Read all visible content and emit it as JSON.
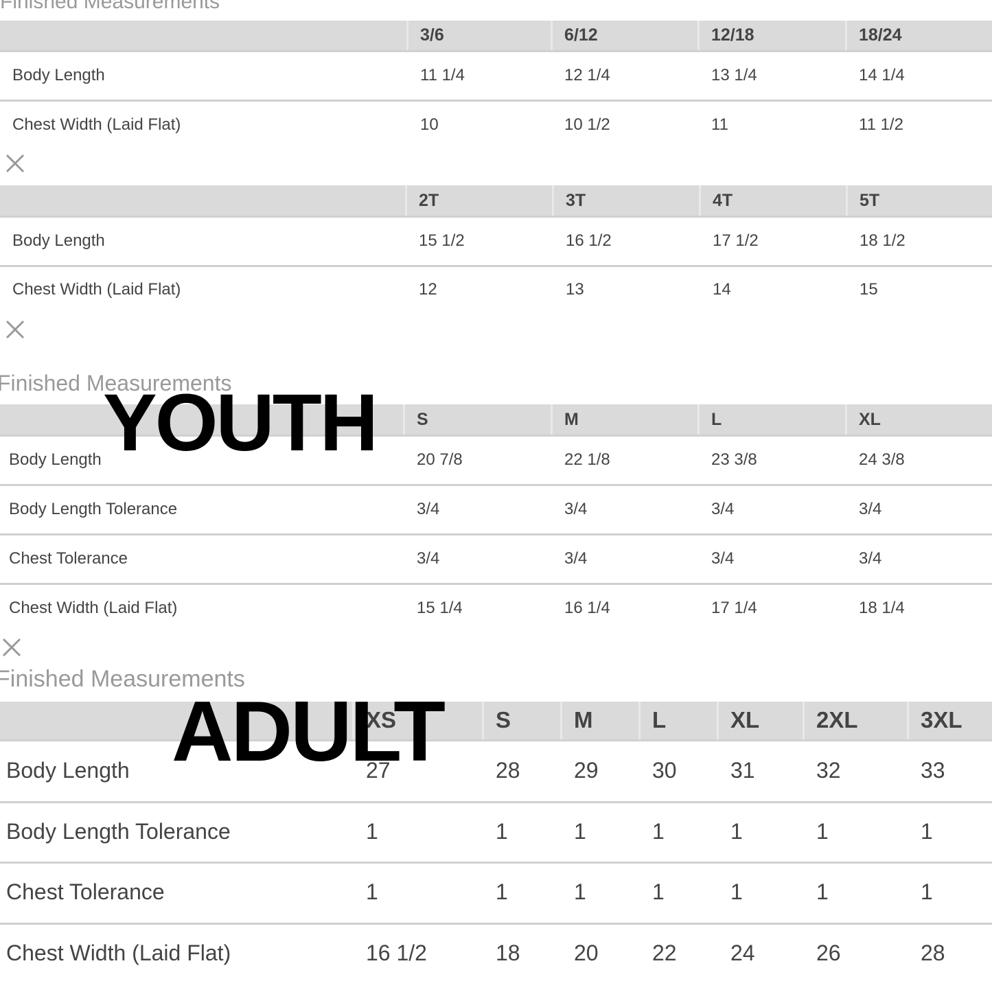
{
  "tables": [
    {
      "title": "Finished Measurements",
      "columns": [
        "3/6",
        "6/12",
        "12/18",
        "18/24"
      ],
      "rows": [
        {
          "label": "Body Length",
          "values": [
            "11 1/4",
            "12 1/4",
            "13 1/4",
            "14 1/4"
          ]
        },
        {
          "label": "Chest Width (Laid Flat)",
          "values": [
            "10",
            "10 1/2",
            "11",
            "11 1/2"
          ]
        }
      ]
    },
    {
      "columns": [
        "2T",
        "3T",
        "4T",
        "5T"
      ],
      "rows": [
        {
          "label": "Body Length",
          "values": [
            "15 1/2",
            "16 1/2",
            "17 1/2",
            "18 1/2"
          ]
        },
        {
          "label": "Chest Width (Laid Flat)",
          "values": [
            "12",
            "13",
            "14",
            "15"
          ]
        }
      ]
    },
    {
      "title": "Finished Measurements",
      "overlay": "YOUTH",
      "columns": [
        "S",
        "M",
        "L",
        "XL"
      ],
      "rows": [
        {
          "label": "Body Length",
          "values": [
            "20 7/8",
            "22 1/8",
            "23 3/8",
            "24 3/8"
          ]
        },
        {
          "label": "Body Length Tolerance",
          "values": [
            "3/4",
            "3/4",
            "3/4",
            "3/4"
          ]
        },
        {
          "label": "Chest Tolerance",
          "values": [
            "3/4",
            "3/4",
            "3/4",
            "3/4"
          ]
        },
        {
          "label": "Chest Width (Laid Flat)",
          "values": [
            "15 1/4",
            "16 1/4",
            "17 1/4",
            "18 1/4"
          ]
        }
      ]
    },
    {
      "title": "Finished Measurements",
      "overlay": "ADULT",
      "columns": [
        "XS",
        "S",
        "M",
        "L",
        "XL",
        "2XL",
        "3XL"
      ],
      "rows": [
        {
          "label": "Body Length",
          "values": [
            "27",
            "28",
            "29",
            "30",
            "31",
            "32",
            "33"
          ]
        },
        {
          "label": "Body Length Tolerance",
          "values": [
            "1",
            "1",
            "1",
            "1",
            "1",
            "1",
            "1"
          ]
        },
        {
          "label": "Chest Tolerance",
          "values": [
            "1",
            "1",
            "1",
            "1",
            "1",
            "1",
            "1"
          ]
        },
        {
          "label": "Chest Width (Laid Flat)",
          "values": [
            "16 1/2",
            "18",
            "20",
            "22",
            "24",
            "26",
            "28"
          ]
        }
      ]
    }
  ]
}
